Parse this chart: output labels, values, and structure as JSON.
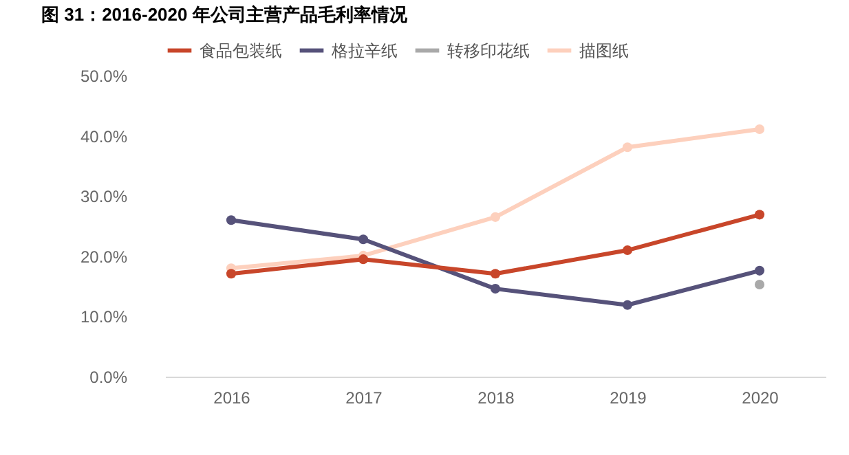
{
  "chart_data": {
    "type": "line",
    "title": "图 31：2016-2020 年公司主营产品毛利率情况",
    "categories": [
      "2016",
      "2017",
      "2018",
      "2019",
      "2020"
    ],
    "series": [
      {
        "name": "食品包装纸",
        "color": "#c8462a",
        "values": [
          17.1,
          19.5,
          17.1,
          21.0,
          26.9
        ]
      },
      {
        "name": "格拉辛纸",
        "color": "#56527a",
        "values": [
          26.0,
          22.8,
          14.6,
          11.9,
          17.6
        ]
      },
      {
        "name": "转移印花纸",
        "color": "#a9a9a9",
        "values": [
          null,
          null,
          null,
          null,
          15.3
        ]
      },
      {
        "name": "描图纸",
        "color": "#fdd0bd",
        "values": [
          18.0,
          20.1,
          26.5,
          38.1,
          41.1
        ]
      }
    ],
    "ylim": [
      0,
      50
    ],
    "yticks": [
      {
        "value": 0,
        "label": "0.0%"
      },
      {
        "value": 10,
        "label": "10.0%"
      },
      {
        "value": 20,
        "label": "20.0%"
      },
      {
        "value": 30,
        "label": "30.0%"
      },
      {
        "value": 40,
        "label": "40.0%"
      },
      {
        "value": 50,
        "label": "50.0%"
      }
    ],
    "grid": false,
    "legend": "top",
    "marker": "circle",
    "line_style": "solid"
  }
}
